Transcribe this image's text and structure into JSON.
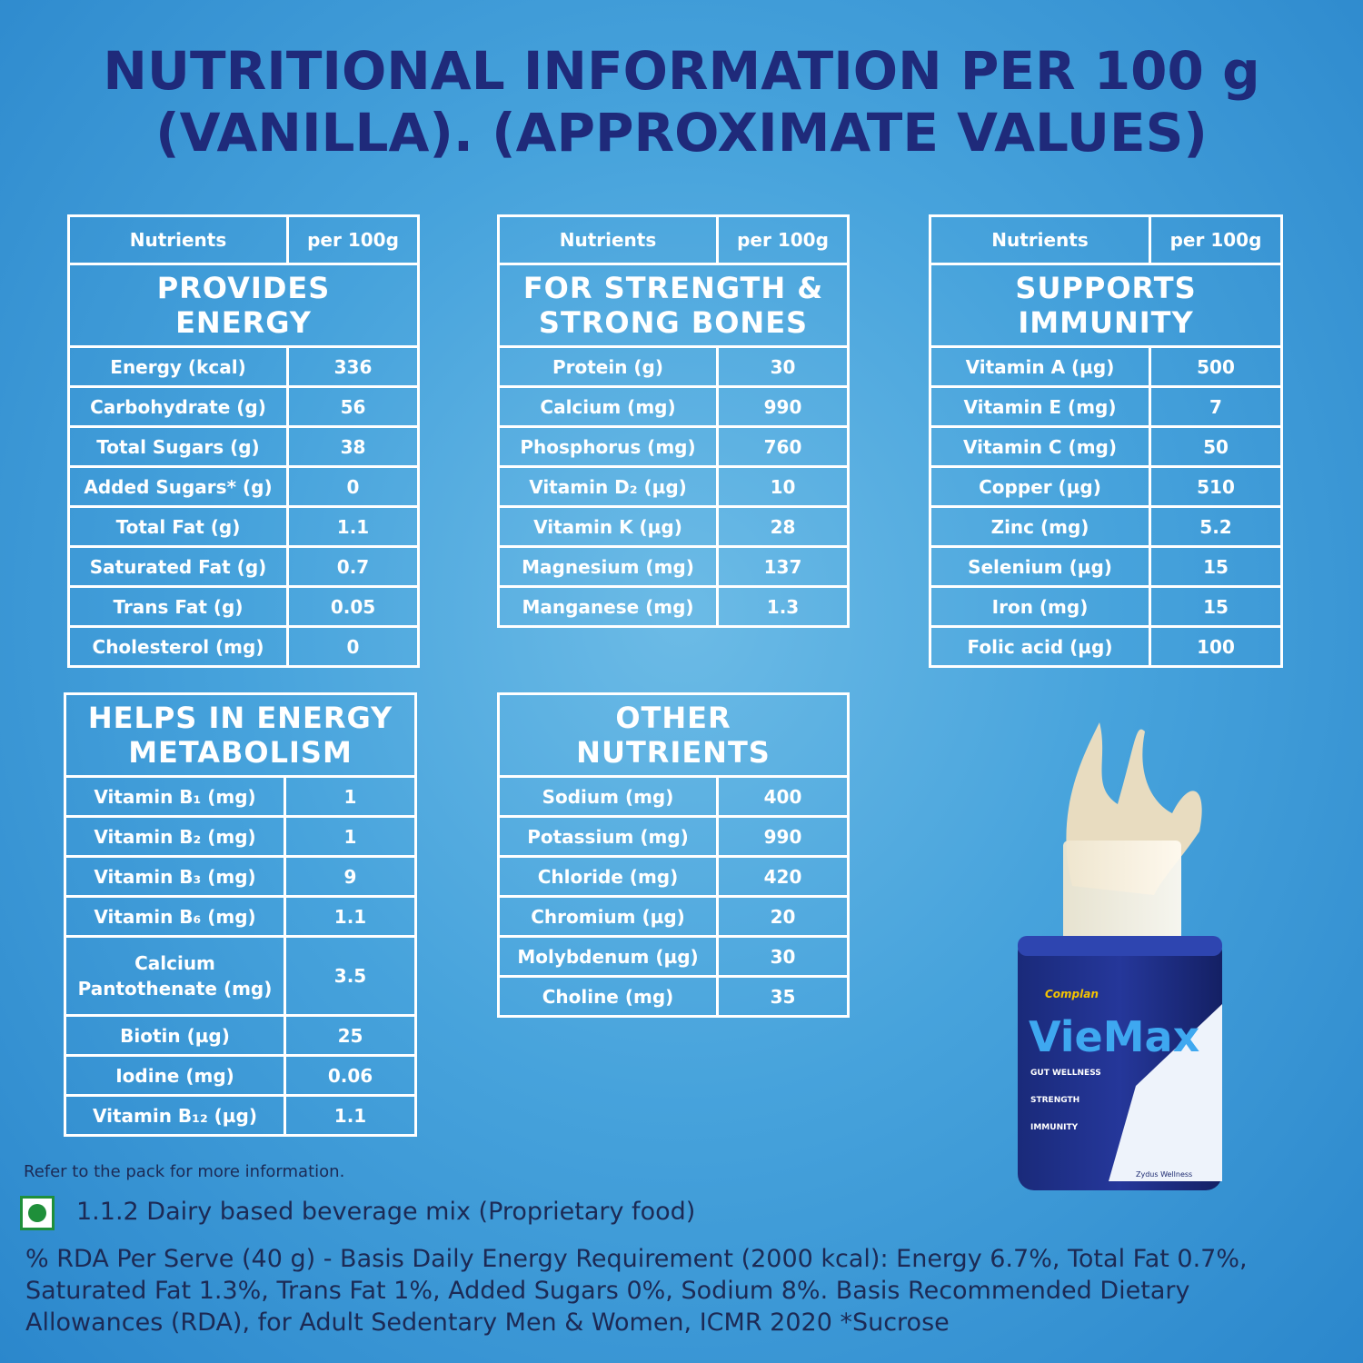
{
  "header": {
    "title_lines": [
      "NUTRITIONAL INFORMATION PER 100 g",
      "(VANILLA). (APPROXIMATE VALUES)"
    ]
  },
  "tables": [
    {
      "columns": [
        "Nutrients",
        "per 100g"
      ],
      "heading": "PROVIDES\nENERGY",
      "rows": [
        [
          "Energy (kcal)",
          "336"
        ],
        [
          "Carbohydrate (g)",
          "56"
        ],
        [
          "Total Sugars (g)",
          "38"
        ],
        [
          "Added Sugars* (g)",
          "0"
        ],
        [
          "Total Fat (g)",
          "1.1"
        ],
        [
          "Saturated Fat (g)",
          "0.7"
        ],
        [
          "Trans Fat (g)",
          "0.05"
        ],
        [
          "Cholesterol (mg)",
          "0"
        ]
      ]
    },
    {
      "columns": [
        "Nutrients",
        "per 100g"
      ],
      "heading": "FOR STRENGTH &\nSTRONG BONES",
      "rows": [
        [
          "Protein (g)",
          "30"
        ],
        [
          "Calcium (mg)",
          "990"
        ],
        [
          "Phosphorus (mg)",
          "760"
        ],
        [
          "Vitamin D₂ (µg)",
          "10"
        ],
        [
          "Vitamin K (µg)",
          "28"
        ],
        [
          "Magnesium (mg)",
          "137"
        ],
        [
          "Manganese (mg)",
          "1.3"
        ]
      ]
    },
    {
      "columns": [
        "Nutrients",
        "per 100g"
      ],
      "heading": "SUPPORTS\nIMMUNITY",
      "rows": [
        [
          "Vitamin A (µg)",
          "500"
        ],
        [
          "Vitamin E (mg)",
          "7"
        ],
        [
          "Vitamin C (mg)",
          "50"
        ],
        [
          "Copper (µg)",
          "510"
        ],
        [
          "Zinc (mg)",
          "5.2"
        ],
        [
          "Selenium (µg)",
          "15"
        ],
        [
          "Iron (mg)",
          "15"
        ],
        [
          "Folic acid (µg)",
          "100"
        ]
      ]
    },
    {
      "heading": "HELPS IN ENERGY\nMETABOLISM",
      "rows": [
        [
          "Vitamin B₁ (mg)",
          "1"
        ],
        [
          "Vitamin B₂ (mg)",
          "1"
        ],
        [
          "Vitamin B₃ (mg)",
          "9"
        ],
        [
          "Vitamin B₆ (mg)",
          "1.1"
        ],
        [
          "Calcium\nPantothenate (mg)",
          "3.5"
        ],
        [
          "Biotin (µg)",
          "25"
        ],
        [
          "Iodine (mg)",
          "0.06"
        ],
        [
          "Vitamin B₁₂ (µg)",
          "1.1"
        ]
      ]
    },
    {
      "heading": "OTHER\nNUTRIENTS",
      "rows": [
        [
          "Sodium (mg)",
          "400"
        ],
        [
          "Potassium (mg)",
          "990"
        ],
        [
          "Chloride (mg)",
          "420"
        ],
        [
          "Chromium (µg)",
          "20"
        ],
        [
          "Molybdenum (µg)",
          "30"
        ],
        [
          "Choline (mg)",
          "35"
        ]
      ]
    }
  ],
  "product": {
    "brand": "Complan",
    "name": "VieMax",
    "claims": [
      "GUT WELLNESS",
      "STRENGTH",
      "IMMUNITY"
    ],
    "maker": "Zydus Wellness"
  },
  "footer": {
    "note": "Refer to the pack for more information.",
    "veg_label": "1.1.2 Dairy based beverage mix (Proprietary food)",
    "rda_lines": [
      "% RDA Per Serve (40 g) - Basis Daily Energy Requirement (2000 kcal): Energy 6.7%, Total Fat 0.7%,",
      "Saturated Fat 1.3%, Trans Fat 1%, Added Sugars 0%, Sodium 8%. Basis Recommended Dietary",
      "Allowances (RDA), for Adult Sedentary Men & Women, ICMR 2020 *Sucrose"
    ]
  }
}
